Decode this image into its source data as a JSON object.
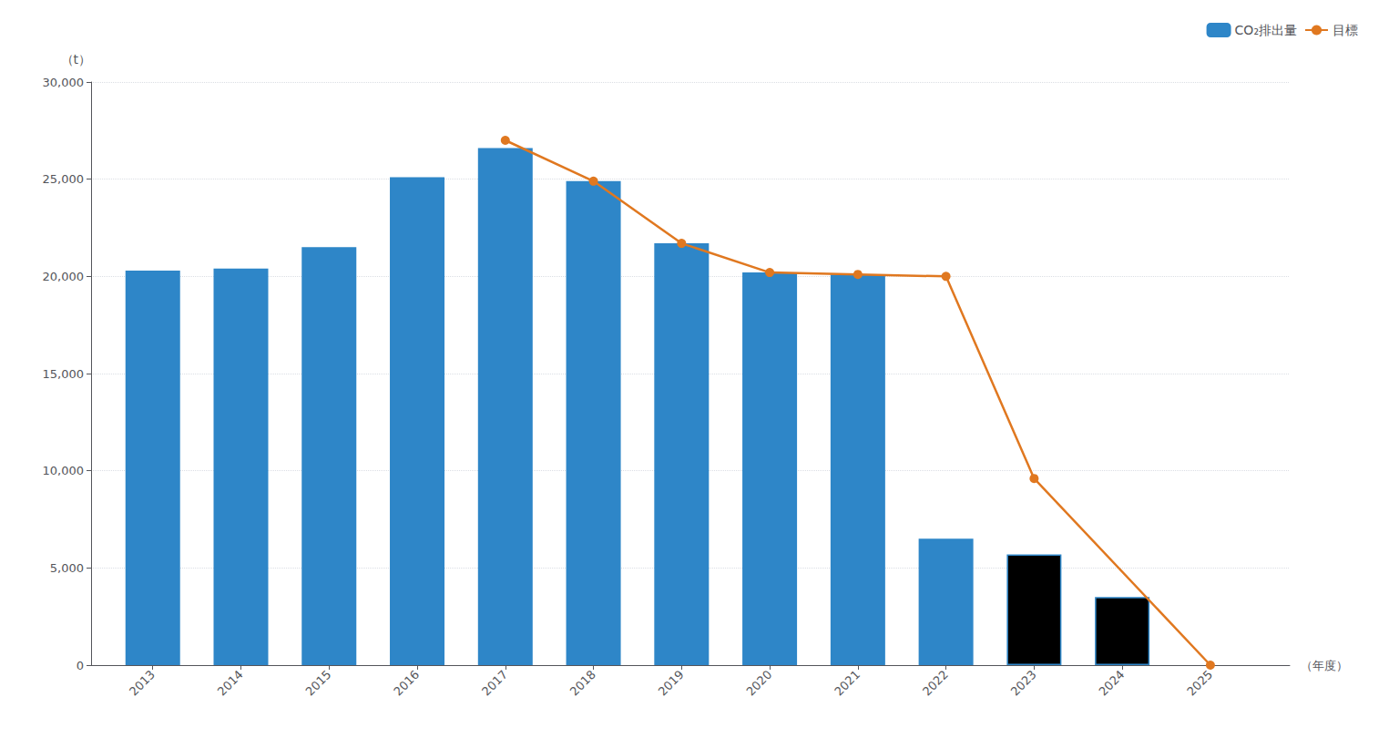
{
  "chart_data": {
    "type": "bar",
    "xlabel": "（年度）",
    "ylabel": "（t）",
    "series": [
      {
        "name": "CO₂排出量",
        "type": "bar",
        "color": "#2e86c8",
        "colors": [
          "#2e86c8",
          "#2e86c8",
          "#2e86c8",
          "#2e86c8",
          "#2e86c8",
          "#2e86c8",
          "#2e86c8",
          "#2e86c8",
          "#2e86c8",
          "#2e86c8",
          "#000000",
          "#000000"
        ],
        "x": [
          2013,
          2014,
          2015,
          2016,
          2017,
          2018,
          2019,
          2020,
          2021,
          2022,
          2023,
          2024
        ],
        "values": [
          20300,
          20400,
          21500,
          25100,
          26600,
          24900,
          21700,
          20200,
          20100,
          6500,
          5700,
          3500
        ]
      },
      {
        "name": "目標",
        "type": "line",
        "color": "#e07820",
        "marker": "circle",
        "x": [
          2017,
          2018,
          2019,
          2020,
          2021,
          2022,
          2023,
          2025
        ],
        "values": [
          27000,
          24900,
          21700,
          20200,
          20100,
          20000,
          9600,
          0
        ]
      }
    ],
    "xlim": [
      2012.3,
      2025.9
    ],
    "xticks": [
      2013,
      2014,
      2015,
      2016,
      2017,
      2018,
      2019,
      2020,
      2021,
      2022,
      2023,
      2024,
      2025
    ],
    "ylim": [
      0,
      30000
    ],
    "yticks": [
      0,
      {
        "value": 5000,
        "label": "5,000"
      },
      {
        "value": 10000,
        "label": "10,000"
      },
      {
        "value": 15000,
        "label": "15,000"
      },
      {
        "value": 20000,
        "label": "20,000"
      },
      {
        "value": 25000,
        "label": "25,000"
      },
      {
        "value": 30000,
        "label": "30,000"
      }
    ],
    "grid": true,
    "legend": "upper right"
  }
}
